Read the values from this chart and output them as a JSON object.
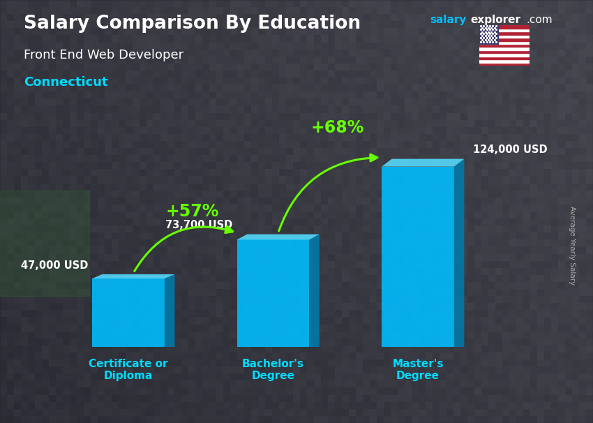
{
  "title": "Salary Comparison By Education",
  "subtitle": "Front End Web Developer",
  "location": "Connecticut",
  "categories": [
    "Certificate or\nDiploma",
    "Bachelor's\nDegree",
    "Master's\nDegree"
  ],
  "values": [
    47000,
    73700,
    124000
  ],
  "value_labels": [
    "47,000 USD",
    "73,700 USD",
    "124,000 USD"
  ],
  "bar_color_front": "#00BFFF",
  "bar_color_side": "#007BAA",
  "bar_color_top": "#55DDFF",
  "pct_labels": [
    "+57%",
    "+68%"
  ],
  "ylabel": "Average Yearly Salary",
  "bg_color": "#555566",
  "title_color": "#FFFFFF",
  "subtitle_color": "#FFFFFF",
  "location_color": "#00DDFF",
  "category_color": "#00DDFF",
  "value_color": "#FFFFFF",
  "pct_color": "#66FF00",
  "watermark_salary_color": "#00BFFF",
  "watermark_explorer_color": "#FFFFFF",
  "ylabel_color": "#AAAAAA"
}
